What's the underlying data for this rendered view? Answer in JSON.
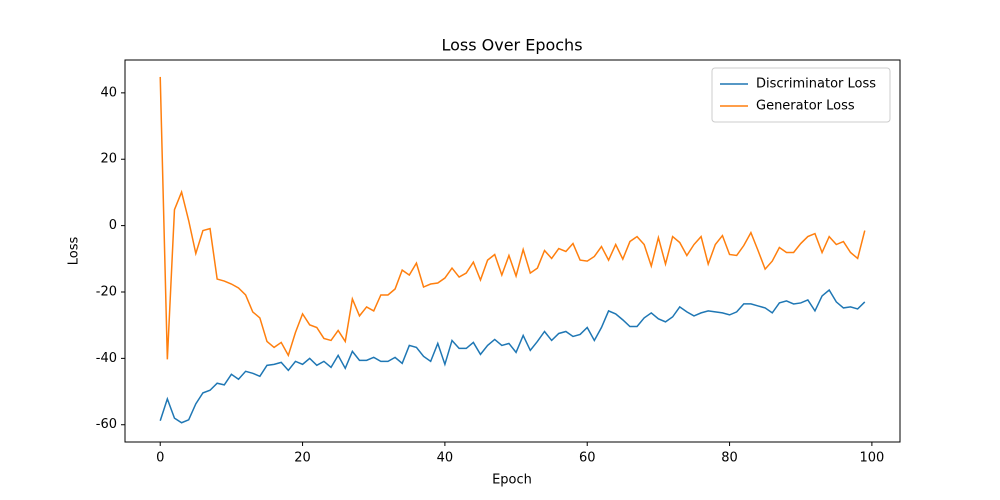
{
  "chart_data": {
    "type": "line",
    "title": "Loss Over Epochs",
    "x_label": "Epoch",
    "y_label": "Loss",
    "x": [
      0,
      1,
      2,
      3,
      4,
      5,
      6,
      7,
      8,
      9,
      10,
      11,
      12,
      13,
      14,
      15,
      16,
      17,
      18,
      19,
      20,
      21,
      22,
      23,
      24,
      25,
      26,
      27,
      28,
      29,
      30,
      31,
      32,
      33,
      34,
      35,
      36,
      37,
      38,
      39,
      40,
      41,
      42,
      43,
      44,
      45,
      46,
      47,
      48,
      49,
      50,
      51,
      52,
      53,
      54,
      55,
      56,
      57,
      58,
      59,
      60,
      61,
      62,
      63,
      64,
      65,
      66,
      67,
      68,
      69,
      70,
      71,
      72,
      73,
      74,
      75,
      76,
      77,
      78,
      79,
      80,
      81,
      82,
      83,
      84,
      85,
      86,
      87,
      88,
      89,
      90,
      91,
      92,
      93,
      94,
      95,
      96,
      97,
      98,
      99
    ],
    "series": [
      {
        "name": "Discriminator Loss",
        "color": "#1f77b4",
        "values": [
          -58.8,
          -52.2,
          -58,
          -59.4,
          -58.5,
          -53.7,
          -50.4,
          -49.6,
          -47.5,
          -48,
          -44.8,
          -46.3,
          -43.9,
          -44.5,
          -45.4,
          -42.1,
          -41.8,
          -41.2,
          -43.6,
          -40.9,
          -41.8,
          -40,
          -42.1,
          -40.9,
          -42.7,
          -39.1,
          -43,
          -37.9,
          -40.6,
          -40.6,
          -39.7,
          -40.9,
          -40.9,
          -39.7,
          -41.5,
          -36.1,
          -36.7,
          -39.4,
          -40.9,
          -35.5,
          -41.8,
          -34.6,
          -37,
          -37,
          -35.2,
          -38.8,
          -36.1,
          -34.3,
          -36.1,
          -35.5,
          -38.2,
          -33.1,
          -37.6,
          -34.9,
          -31.9,
          -34.6,
          -32.5,
          -31.9,
          -33.4,
          -32.8,
          -30.7,
          -34.6,
          -30.7,
          -25.7,
          -26.6,
          -28.4,
          -30.4,
          -30.4,
          -27.8,
          -26.3,
          -28.1,
          -29,
          -27.5,
          -24.5,
          -26,
          -27.2,
          -26.3,
          -25.7,
          -26,
          -26.3,
          -26.9,
          -26,
          -23.6,
          -23.6,
          -24.2,
          -24.8,
          -26.3,
          -23.3,
          -22.7,
          -23.6,
          -23.3,
          -22.4,
          -25.7,
          -21.2,
          -19.4,
          -23,
          -24.8,
          -24.5,
          -25.1,
          -23
        ]
      },
      {
        "name": "Generator Loss",
        "color": "#ff7f0e",
        "values": [
          44.8,
          -40.3,
          4.8,
          10.1,
          1.5,
          -8.4,
          -1.5,
          -0.9,
          -16.1,
          -16.7,
          -17.6,
          -18.8,
          -20.9,
          -26,
          -27.8,
          -34.9,
          -36.7,
          -35.2,
          -39.1,
          -32.2,
          -26.6,
          -29.9,
          -30.7,
          -34,
          -34.6,
          -31.6,
          -34.9,
          -22.1,
          -27.2,
          -24.5,
          -25.7,
          -20.9,
          -20.9,
          -19.1,
          -13.4,
          -14.9,
          -11.3,
          -18.5,
          -17.6,
          -17.3,
          -15.8,
          -12.8,
          -15.5,
          -14.3,
          -11,
          -16.4,
          -10.4,
          -8.7,
          -14.9,
          -9,
          -15.2,
          -7.2,
          -14.3,
          -12.8,
          -7.5,
          -9.9,
          -6.9,
          -7.8,
          -5.4,
          -10.4,
          -10.7,
          -9.3,
          -6.3,
          -10.4,
          -5.7,
          -10.1,
          -4.8,
          -3.3,
          -5.7,
          -12.2,
          -3.6,
          -11.6,
          -3.3,
          -5.1,
          -9,
          -5.7,
          -3.3,
          -11.6,
          -5.7,
          -3,
          -8.7,
          -9,
          -6,
          -2.1,
          -7.5,
          -13.1,
          -10.7,
          -6.6,
          -8.1,
          -8.1,
          -5.4,
          -3.3,
          -2.4,
          -8.1,
          -3.3,
          -5.7,
          -4.8,
          -8.1,
          -9.9,
          -1.5
        ]
      }
    ],
    "xlim": [
      -4.95,
      103.95
    ],
    "xticks": [
      0,
      20,
      40,
      60,
      80,
      100
    ],
    "ylim": [
      -65.2,
      49.9
    ],
    "yticks": [
      -60,
      -40,
      -20,
      0,
      20,
      40
    ],
    "legend": "upper right"
  }
}
